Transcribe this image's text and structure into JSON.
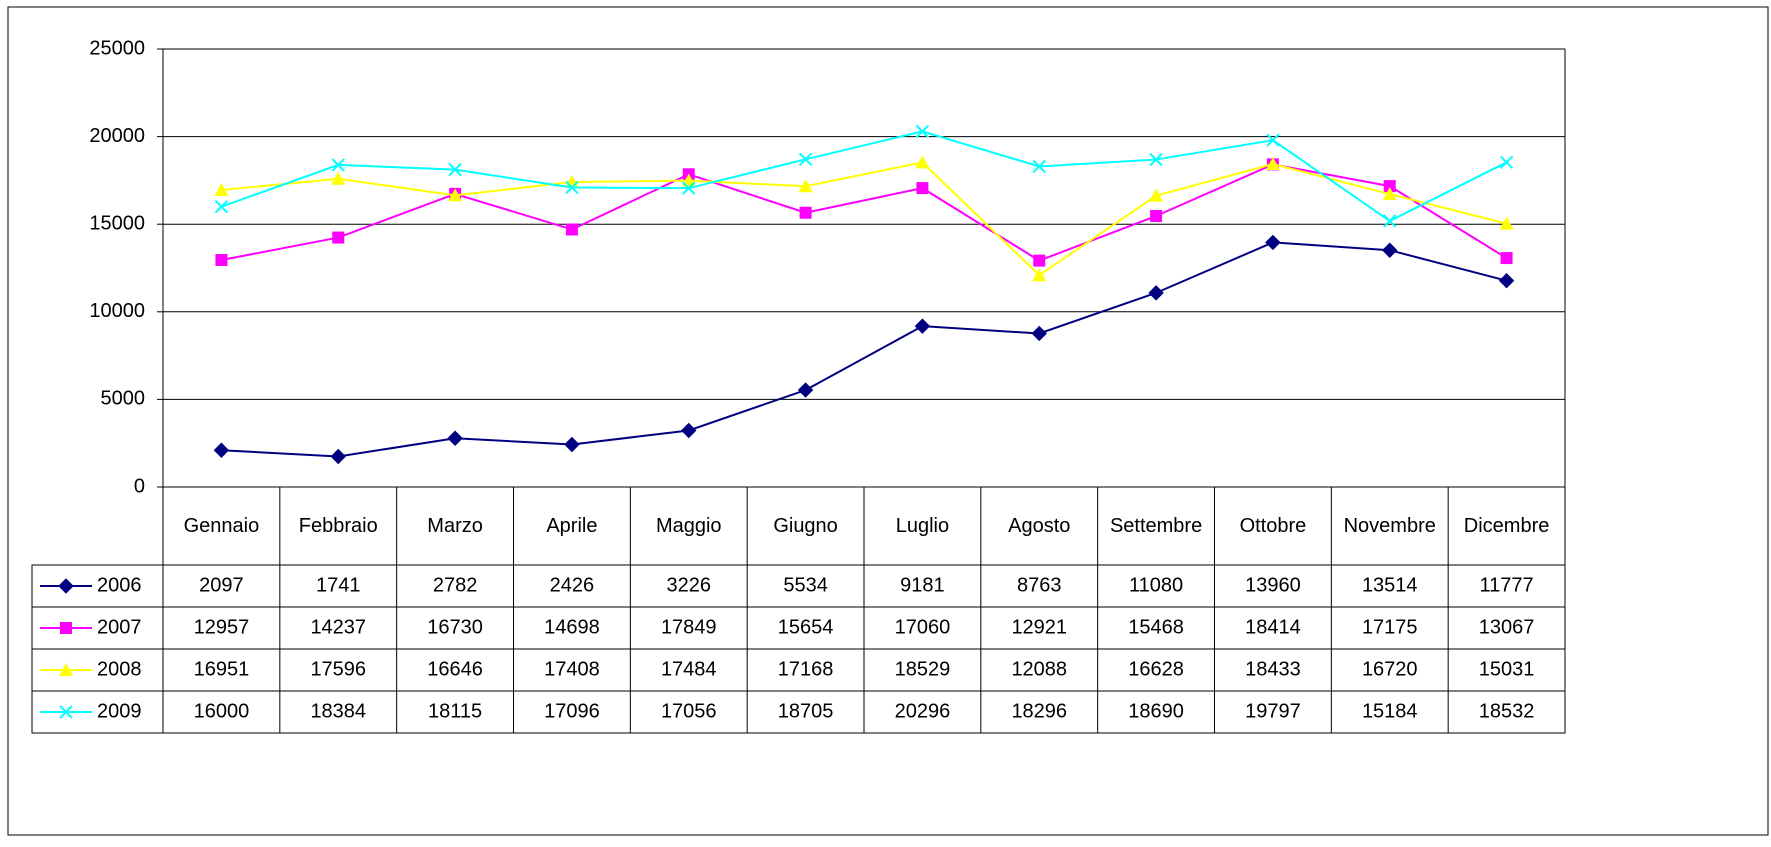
{
  "chart_data": {
    "type": "line",
    "categories": [
      "Gennaio",
      "Febbraio",
      "Marzo",
      "Aprile",
      "Maggio",
      "Giugno",
      "Luglio",
      "Agosto",
      "Settembre",
      "Ottobre",
      "Novembre",
      "Dicembre"
    ],
    "series": [
      {
        "name": "2006",
        "color": "#000080",
        "marker": "diamond",
        "values": [
          2097,
          1741,
          2782,
          2426,
          3226,
          5534,
          9181,
          8763,
          11080,
          13960,
          13514,
          11777
        ]
      },
      {
        "name": "2007",
        "color": "#ff00ff",
        "marker": "square",
        "values": [
          12957,
          14237,
          16730,
          14698,
          17849,
          15654,
          17060,
          12921,
          15468,
          18414,
          17175,
          13067
        ]
      },
      {
        "name": "2008",
        "color": "#ffff00",
        "marker": "triangle",
        "values": [
          16951,
          17596,
          16646,
          17408,
          17484,
          17168,
          18529,
          12088,
          16628,
          18433,
          16720,
          15031
        ]
      },
      {
        "name": "2009",
        "color": "#00ffff",
        "marker": "x",
        "values": [
          16000,
          18384,
          18115,
          17096,
          17056,
          18705,
          20296,
          18296,
          18690,
          19797,
          15184,
          18532
        ]
      }
    ],
    "ylim": [
      0,
      25000
    ],
    "yticks": [
      0,
      5000,
      10000,
      15000,
      20000,
      25000
    ],
    "grid": true
  }
}
